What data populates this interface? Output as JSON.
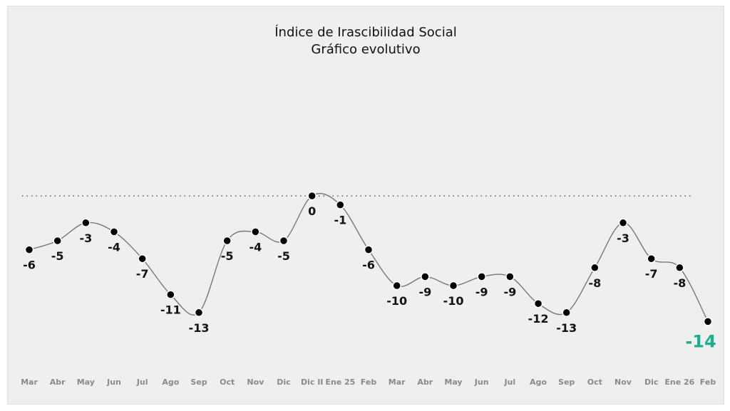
{
  "chart_data": {
    "type": "line",
    "title": "Índice de Irascibilidad Social",
    "subtitle": "Gráfico evolutivo",
    "categories": [
      "Mar",
      "Abr",
      "May",
      "Jun",
      "Jul",
      "Ago",
      "Sep",
      "Oct",
      "Nov",
      "Dic",
      "Dic II",
      "Ene 25",
      "Feb",
      "Mar",
      "Abr",
      "May",
      "Jun",
      "Jul",
      "Ago",
      "Sep",
      "Oct",
      "Nov",
      "Dic",
      "Ene 26",
      "Feb"
    ],
    "values": [
      -6,
      -5,
      -3,
      -4,
      -7,
      -11,
      -13,
      -5,
      -4,
      -5,
      0,
      -1,
      -6,
      -10,
      -9,
      -10,
      -9,
      -9,
      -12,
      -13,
      -8,
      -3,
      -7,
      -8,
      -14
    ],
    "reference_line": 0,
    "grid": false,
    "legend": "none",
    "colors": {
      "line": "#777777",
      "marker": "#000000",
      "label": "#111111",
      "highlight": "#1aaf8c",
      "background": "#efefef"
    },
    "highlight_last": true
  }
}
